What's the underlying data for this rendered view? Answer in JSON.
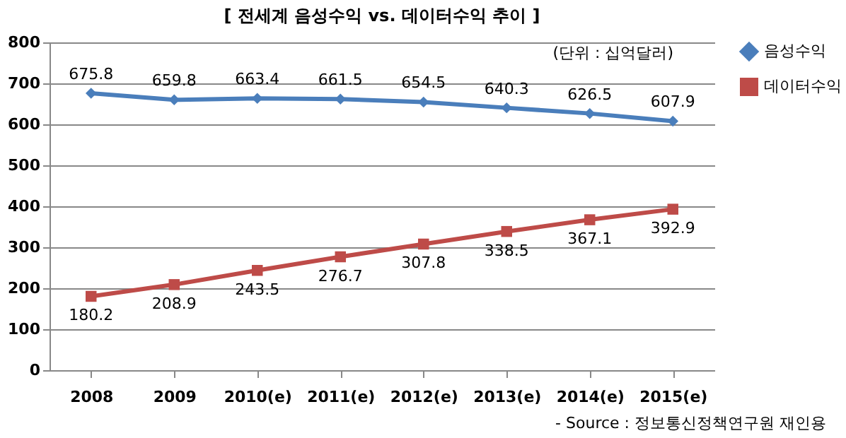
{
  "chart_data": {
    "type": "line",
    "title": "[ 전세계 음성수익 vs. 데이터수익 추이 ]",
    "categories": [
      "2008",
      "2009",
      "2010(e)",
      "2011(e)",
      "2012(e)",
      "2013(e)",
      "2014(e)",
      "2015(e)"
    ],
    "series": [
      {
        "name": "음성수익",
        "color": "#4a7ebb",
        "marker": "diamond",
        "values": [
          675.8,
          659.8,
          663.4,
          661.5,
          654.5,
          640.3,
          626.5,
          607.9
        ]
      },
      {
        "name": "데이터수익",
        "color": "#be4b48",
        "marker": "square",
        "values": [
          180.2,
          208.9,
          243.5,
          276.7,
          307.8,
          338.5,
          367.1,
          392.9
        ]
      }
    ],
    "ylim": [
      0,
      800
    ],
    "yticks": [
      0,
      100,
      200,
      300,
      400,
      500,
      600,
      700,
      800
    ],
    "grid": "y",
    "legend": "right",
    "data_labels": true,
    "annotations": [
      "(단위 : 십억달러)",
      "- Source : 정보통신정책연구원 재인용"
    ]
  }
}
